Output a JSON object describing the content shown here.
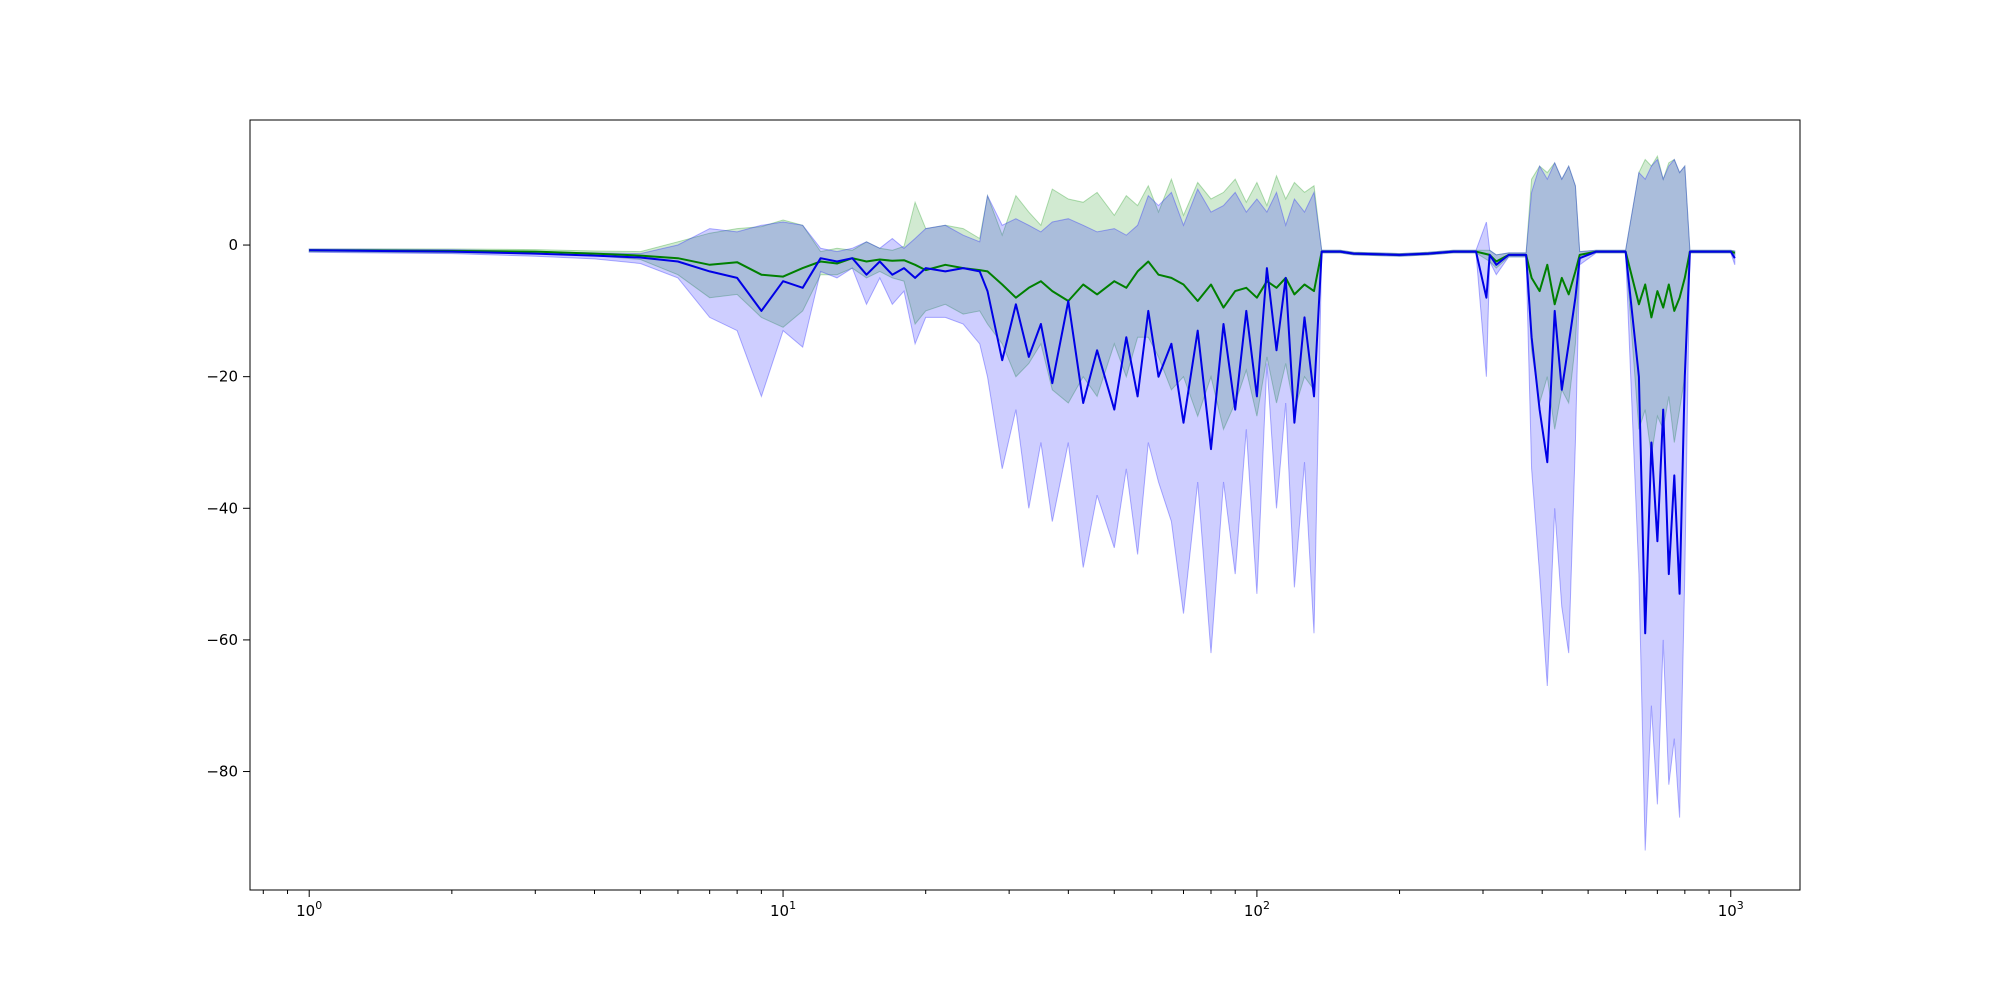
{
  "chart_data": {
    "type": "line",
    "title": "",
    "xlabel": "",
    "ylabel": "",
    "x_scale": "log",
    "xlim": [
      0.75,
      1400
    ],
    "ylim": [
      -98,
      19
    ],
    "grid": false,
    "legend": "none",
    "x_ticks": [
      {
        "value": 1,
        "base": "10",
        "exp": "0"
      },
      {
        "value": 10,
        "base": "10",
        "exp": "1"
      },
      {
        "value": 100,
        "base": "10",
        "exp": "2"
      },
      {
        "value": 1000,
        "base": "10",
        "exp": "3"
      }
    ],
    "y_ticks": [
      {
        "value": 0,
        "label": "0"
      },
      {
        "value": -20,
        "label": "−20"
      },
      {
        "value": -40,
        "label": "−40"
      },
      {
        "value": -60,
        "label": "−60"
      },
      {
        "value": -80,
        "label": "−80"
      }
    ],
    "series": [
      {
        "color": "#008000",
        "band_color": "#2ca02c",
        "points": [
          [
            1,
            -0.8,
            -0.6,
            -1.0
          ],
          [
            2,
            -0.9,
            -0.6,
            -1.2
          ],
          [
            3,
            -1.0,
            -0.7,
            -1.3
          ],
          [
            4,
            -1.3,
            -0.9,
            -1.6
          ],
          [
            5,
            -1.6,
            -1.0,
            -2.2
          ],
          [
            6,
            -2.0,
            0.5,
            -4.5
          ],
          [
            7,
            -3.0,
            1.8,
            -8.0
          ],
          [
            8,
            -2.6,
            2.5,
            -7.5
          ],
          [
            9,
            -4.5,
            2.8,
            -11.0
          ],
          [
            10,
            -4.8,
            3.8,
            -12.5
          ],
          [
            11,
            -3.5,
            3.0,
            -10.0
          ],
          [
            12,
            -2.5,
            -1.0,
            -4.5
          ],
          [
            13,
            -2.8,
            -0.5,
            -4.5
          ],
          [
            14,
            -2.0,
            -0.8,
            -3.5
          ],
          [
            15,
            -2.5,
            0.5,
            -5.0
          ],
          [
            16,
            -2.2,
            -0.5,
            -4.0
          ],
          [
            17,
            -2.4,
            -0.8,
            -5.0
          ],
          [
            18,
            -2.3,
            -0.2,
            -5.5
          ],
          [
            19,
            -3.0,
            6.5,
            -12.0
          ],
          [
            20,
            -3.8,
            2.5,
            -10.0
          ],
          [
            22,
            -3.0,
            3.0,
            -9.0
          ],
          [
            24,
            -3.5,
            2.5,
            -10.5
          ],
          [
            26,
            -3.8,
            1.0,
            -10.0
          ],
          [
            27,
            -4.0,
            7.5,
            -12.0
          ],
          [
            29,
            -6.0,
            1.5,
            -15.0
          ],
          [
            31,
            -8.0,
            7.5,
            -20.0
          ],
          [
            33,
            -6.5,
            5.0,
            -18.0
          ],
          [
            35,
            -5.5,
            3.0,
            -15.0
          ],
          [
            37,
            -7.0,
            8.5,
            -22.0
          ],
          [
            40,
            -8.5,
            7.0,
            -24.0
          ],
          [
            43,
            -6.0,
            6.5,
            -20.0
          ],
          [
            46,
            -7.5,
            8.0,
            -23.0
          ],
          [
            50,
            -5.5,
            4.5,
            -15.0
          ],
          [
            53,
            -6.5,
            7.5,
            -20.0
          ],
          [
            56,
            -4.0,
            6.0,
            -14.0
          ],
          [
            59,
            -2.5,
            9.0,
            -14.0
          ],
          [
            62,
            -4.5,
            5.0,
            -17.0
          ],
          [
            66,
            -5.0,
            10.0,
            -22.0
          ],
          [
            70,
            -6.0,
            4.5,
            -20.0
          ],
          [
            75,
            -8.5,
            9.5,
            -26.0
          ],
          [
            80,
            -6.0,
            7.0,
            -20.0
          ],
          [
            85,
            -9.5,
            8.0,
            -28.0
          ],
          [
            90,
            -7.0,
            10.0,
            -24.0
          ],
          [
            95,
            -6.5,
            6.5,
            -19.0
          ],
          [
            100,
            -8.0,
            9.5,
            -26.0
          ],
          [
            105,
            -5.5,
            6.0,
            -17.0
          ],
          [
            110,
            -6.5,
            10.5,
            -24.0
          ],
          [
            115,
            -5.0,
            7.0,
            -18.0
          ],
          [
            120,
            -7.5,
            9.5,
            -25.0
          ],
          [
            126,
            -6.0,
            8.0,
            -20.0
          ],
          [
            132,
            -7.0,
            9.0,
            -22.0
          ],
          [
            137,
            -1.0,
            -0.8,
            -1.2
          ],
          [
            150,
            -1.0,
            -0.8,
            -1.2
          ],
          [
            160,
            -1.3,
            -1.1,
            -1.5
          ],
          [
            180,
            -1.4,
            -1.2,
            -1.6
          ],
          [
            200,
            -1.5,
            -1.3,
            -1.7
          ],
          [
            230,
            -1.3,
            -1.1,
            -1.5
          ],
          [
            260,
            -1.0,
            -0.8,
            -1.2
          ],
          [
            290,
            -1.0,
            -0.8,
            -1.2
          ],
          [
            310,
            -1.5,
            -0.8,
            -2.5
          ],
          [
            320,
            -2.5,
            -1.5,
            -3.5
          ],
          [
            340,
            -1.5,
            -1.2,
            -1.8
          ],
          [
            370,
            -1.5,
            -1.2,
            -1.8
          ],
          [
            380,
            -5.0,
            10.0,
            -16.0
          ],
          [
            395,
            -7.0,
            12.0,
            -24.0
          ],
          [
            410,
            -3.0,
            11.0,
            -20.0
          ],
          [
            425,
            -9.0,
            12.5,
            -28.0
          ],
          [
            440,
            -5.0,
            10.0,
            -22.0
          ],
          [
            455,
            -7.5,
            12.0,
            -24.0
          ],
          [
            470,
            -4.0,
            9.0,
            -15.0
          ],
          [
            480,
            -1.5,
            -1.0,
            -2.0
          ],
          [
            520,
            -1.0,
            -0.8,
            -1.2
          ],
          [
            600,
            -1.0,
            -0.8,
            -1.2
          ],
          [
            640,
            -9.0,
            11.0,
            -28.0
          ],
          [
            660,
            -6.0,
            13.0,
            -25.0
          ],
          [
            680,
            -11.0,
            12.0,
            -32.0
          ],
          [
            700,
            -7.0,
            13.5,
            -26.0
          ],
          [
            720,
            -9.5,
            10.0,
            -28.0
          ],
          [
            740,
            -6.0,
            12.5,
            -23.0
          ],
          [
            760,
            -10.0,
            13.0,
            -30.0
          ],
          [
            780,
            -8.0,
            11.0,
            -25.0
          ],
          [
            800,
            -5.0,
            12.0,
            -20.0
          ],
          [
            820,
            -1.0,
            -0.8,
            -1.2
          ],
          [
            1000,
            -1.0,
            -0.8,
            -1.2
          ],
          [
            1020,
            -1.2,
            -0.9,
            -1.5
          ]
        ]
      },
      {
        "color": "#0000e6",
        "band_color": "#1f1fff",
        "points": [
          [
            1,
            -0.8,
            -0.6,
            -1.1
          ],
          [
            2,
            -1.0,
            -0.7,
            -1.3
          ],
          [
            3,
            -1.3,
            -1.0,
            -1.7
          ],
          [
            4,
            -1.6,
            -1.2,
            -2.1
          ],
          [
            5,
            -1.9,
            -1.3,
            -2.8
          ],
          [
            6,
            -2.5,
            0.0,
            -5.0
          ],
          [
            7,
            -4.0,
            2.5,
            -11.0
          ],
          [
            8,
            -5.0,
            2.0,
            -13.0
          ],
          [
            9,
            -10.0,
            3.0,
            -23.0
          ],
          [
            10,
            -5.5,
            3.5,
            -13.0
          ],
          [
            11,
            -6.5,
            3.0,
            -15.5
          ],
          [
            12,
            -2.0,
            -0.5,
            -4.0
          ],
          [
            13,
            -2.5,
            -1.0,
            -5.0
          ],
          [
            14,
            -2.0,
            -0.5,
            -3.5
          ],
          [
            15,
            -4.5,
            0.5,
            -9.0
          ],
          [
            16,
            -2.5,
            -0.5,
            -5.0
          ],
          [
            17,
            -4.5,
            1.0,
            -9.0
          ],
          [
            18,
            -3.5,
            -0.5,
            -7.0
          ],
          [
            19,
            -5.0,
            1.0,
            -15.0
          ],
          [
            20,
            -3.5,
            2.5,
            -11.0
          ],
          [
            22,
            -4.0,
            3.0,
            -11.0
          ],
          [
            24,
            -3.5,
            1.5,
            -12.0
          ],
          [
            26,
            -4.0,
            0.5,
            -15.0
          ],
          [
            27,
            -7.0,
            7.5,
            -20.0
          ],
          [
            29,
            -17.5,
            3.0,
            -34.0
          ],
          [
            31,
            -9.0,
            4.0,
            -25.0
          ],
          [
            33,
            -17.0,
            3.0,
            -40.0
          ],
          [
            35,
            -12.0,
            2.0,
            -30.0
          ],
          [
            37,
            -21.0,
            3.5,
            -42.0
          ],
          [
            40,
            -8.5,
            4.0,
            -30.0
          ],
          [
            43,
            -24.0,
            3.0,
            -49.0
          ],
          [
            46,
            -16.0,
            2.0,
            -38.0
          ],
          [
            50,
            -25.0,
            2.5,
            -46.0
          ],
          [
            53,
            -14.0,
            1.5,
            -34.0
          ],
          [
            56,
            -23.0,
            3.0,
            -47.0
          ],
          [
            59,
            -10.0,
            7.5,
            -30.0
          ],
          [
            62,
            -20.0,
            6.0,
            -36.0
          ],
          [
            66,
            -15.0,
            8.0,
            -42.0
          ],
          [
            70,
            -27.0,
            3.0,
            -56.0
          ],
          [
            75,
            -13.0,
            8.5,
            -36.0
          ],
          [
            80,
            -31.0,
            5.0,
            -62.0
          ],
          [
            85,
            -12.0,
            6.0,
            -36.0
          ],
          [
            90,
            -25.0,
            8.0,
            -50.0
          ],
          [
            95,
            -10.0,
            5.0,
            -28.0
          ],
          [
            100,
            -23.0,
            7.0,
            -53.0
          ],
          [
            105,
            -3.5,
            5.0,
            -18.0
          ],
          [
            110,
            -16.0,
            8.0,
            -40.0
          ],
          [
            115,
            -5.0,
            3.0,
            -24.0
          ],
          [
            120,
            -27.0,
            7.0,
            -52.0
          ],
          [
            126,
            -11.0,
            5.0,
            -33.0
          ],
          [
            132,
            -23.0,
            8.0,
            -59.0
          ],
          [
            137,
            -1.0,
            -0.8,
            -1.2
          ],
          [
            150,
            -1.0,
            -0.8,
            -1.2
          ],
          [
            160,
            -1.3,
            -1.1,
            -1.5
          ],
          [
            180,
            -1.4,
            -1.2,
            -1.6
          ],
          [
            200,
            -1.5,
            -1.3,
            -1.7
          ],
          [
            230,
            -1.3,
            -1.1,
            -1.5
          ],
          [
            260,
            -1.0,
            -0.8,
            -1.2
          ],
          [
            290,
            -1.0,
            -0.8,
            -1.2
          ],
          [
            305,
            -8.0,
            3.5,
            -20.0
          ],
          [
            310,
            -1.5,
            -0.8,
            -2.5
          ],
          [
            320,
            -3.0,
            -1.5,
            -4.5
          ],
          [
            340,
            -1.5,
            -1.2,
            -1.8
          ],
          [
            370,
            -1.5,
            -1.2,
            -1.8
          ],
          [
            380,
            -14.0,
            8.0,
            -34.0
          ],
          [
            395,
            -25.0,
            12.0,
            -50.0
          ],
          [
            410,
            -33.0,
            10.0,
            -67.0
          ],
          [
            425,
            -10.0,
            12.5,
            -40.0
          ],
          [
            440,
            -22.0,
            10.0,
            -55.0
          ],
          [
            455,
            -15.0,
            12.0,
            -62.0
          ],
          [
            470,
            -8.0,
            9.0,
            -30.0
          ],
          [
            480,
            -2.0,
            -1.0,
            -3.0
          ],
          [
            520,
            -1.0,
            -0.8,
            -1.2
          ],
          [
            600,
            -1.0,
            -0.8,
            -1.2
          ],
          [
            640,
            -20.0,
            11.0,
            -50.0
          ],
          [
            660,
            -59.0,
            10.0,
            -92.0
          ],
          [
            680,
            -30.0,
            12.0,
            -70.0
          ],
          [
            700,
            -45.0,
            13.0,
            -85.0
          ],
          [
            720,
            -25.0,
            10.0,
            -60.0
          ],
          [
            740,
            -50.0,
            12.0,
            -82.0
          ],
          [
            760,
            -35.0,
            13.0,
            -75.0
          ],
          [
            780,
            -53.0,
            11.0,
            -87.0
          ],
          [
            800,
            -20.0,
            12.0,
            -50.0
          ],
          [
            820,
            -1.0,
            -0.8,
            -1.2
          ],
          [
            1000,
            -1.0,
            -0.8,
            -1.2
          ],
          [
            1020,
            -2.0,
            -0.9,
            -3.0
          ]
        ]
      }
    ]
  }
}
